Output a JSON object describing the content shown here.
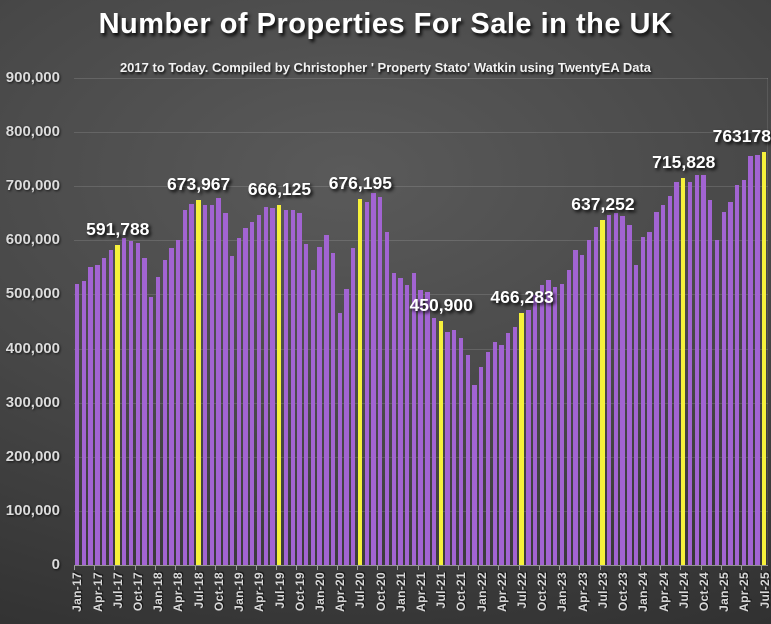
{
  "title": "Number of Properties For Sale in the UK",
  "subtitle": "2017 to Today. Compiled by Christopher ' Property Stato' Watkin using TwentyEA Data",
  "colors": {
    "bar": "#a264d2",
    "highlight_bar": "#f6f13b",
    "grid": "rgba(255,255,255,0.13)",
    "axis_text": "#dcdcdc",
    "data_label_text": "#ffffff"
  },
  "chart_data": {
    "type": "bar",
    "title": "Number of Properties For Sale in the UK",
    "subtitle": "2017 to Today. Compiled by Christopher ' Property Stato' Watkin using TwentyEA Data",
    "ylim": [
      0,
      900000
    ],
    "grid": true,
    "legend": "none",
    "y_tick_labels": [
      "900,000",
      "800,000",
      "700,000",
      "600,000",
      "500,000",
      "400,000",
      "300,000",
      "200,000",
      "100,000",
      "0"
    ],
    "x_tick_step": 3,
    "categories": [
      "Jan-17",
      "Feb-17",
      "Mar-17",
      "Apr-17",
      "May-17",
      "Jun-17",
      "Jul-17",
      "Aug-17",
      "Sep-17",
      "Oct-17",
      "Nov-17",
      "Dec-17",
      "Jan-18",
      "Feb-18",
      "Mar-18",
      "Apr-18",
      "May-18",
      "Jun-18",
      "Jul-18",
      "Aug-18",
      "Sep-18",
      "Oct-18",
      "Nov-18",
      "Dec-18",
      "Jan-19",
      "Feb-19",
      "Mar-19",
      "Apr-19",
      "May-19",
      "Jun-19",
      "Jul-19",
      "Aug-19",
      "Sep-19",
      "Oct-19",
      "Nov-19",
      "Dec-19",
      "Jan-20",
      "Feb-20",
      "Mar-20",
      "Apr-20",
      "May-20",
      "Jun-20",
      "Jul-20",
      "Aug-20",
      "Sep-20",
      "Oct-20",
      "Nov-20",
      "Dec-20",
      "Jan-21",
      "Feb-21",
      "Mar-21",
      "Apr-21",
      "May-21",
      "Jun-21",
      "Jul-21",
      "Aug-21",
      "Sep-21",
      "Oct-21",
      "Nov-21",
      "Dec-21",
      "Jan-22",
      "Feb-22",
      "Mar-22",
      "Apr-22",
      "May-22",
      "Jun-22",
      "Jul-22",
      "Aug-22",
      "Sep-22",
      "Oct-22",
      "Nov-22",
      "Dec-22",
      "Jan-23",
      "Feb-23",
      "Mar-23",
      "Apr-23",
      "May-23",
      "Jun-23",
      "Jul-23",
      "Aug-23",
      "Sep-23",
      "Oct-23",
      "Nov-23",
      "Dec-23",
      "Jan-24",
      "Feb-24",
      "Mar-24",
      "Apr-24",
      "May-24",
      "Jun-24",
      "Jul-24",
      "Aug-24",
      "Sep-24",
      "Oct-24",
      "Nov-24",
      "Dec-24",
      "Jan-25",
      "Feb-25",
      "Mar-25",
      "Apr-25",
      "May-25",
      "Jun-25",
      "Jul-25"
    ],
    "values": [
      520000,
      524000,
      551000,
      554000,
      567000,
      582000,
      591788,
      604000,
      598000,
      595000,
      567000,
      495000,
      533000,
      564000,
      585000,
      601000,
      656000,
      668000,
      673967,
      665000,
      665000,
      678000,
      650000,
      572000,
      604000,
      622000,
      634000,
      647000,
      662000,
      660000,
      666125,
      656000,
      656000,
      650000,
      594000,
      545000,
      588000,
      610000,
      576000,
      466000,
      511000,
      585000,
      676195,
      671000,
      688000,
      681000,
      616000,
      539000,
      530000,
      517000,
      539000,
      508000,
      505000,
      456000,
      450900,
      431000,
      434000,
      419000,
      388000,
      333000,
      366000,
      394000,
      413000,
      407000,
      428000,
      440000,
      466283,
      471000,
      499000,
      517000,
      527000,
      514000,
      520000,
      545000,
      582000,
      573000,
      600000,
      625000,
      637252,
      647000,
      650000,
      645000,
      628000,
      554000,
      607000,
      616000,
      653000,
      665000,
      682000,
      708000,
      715828,
      708000,
      721000,
      721000,
      675000,
      601000,
      653000,
      671000,
      702000,
      711000,
      755000,
      758000,
      763178
    ],
    "highlighted_bars": [
      {
        "index": 6,
        "category": "Jul-17",
        "label": "591,788"
      },
      {
        "index": 18,
        "category": "Jul-18",
        "label": "673,967"
      },
      {
        "index": 30,
        "category": "Jul-19",
        "label": "666,125"
      },
      {
        "index": 42,
        "category": "Jul-20",
        "label": "676,195"
      },
      {
        "index": 54,
        "category": "Jul-21",
        "label": "450,900"
      },
      {
        "index": 66,
        "category": "Jul-22",
        "label": "466,283"
      },
      {
        "index": 78,
        "category": "Jul-23",
        "label": "637,252"
      },
      {
        "index": 90,
        "category": "Jul-24",
        "label": "715,828"
      },
      {
        "index": 102,
        "category": "Jul-25",
        "label": "763178"
      }
    ]
  }
}
